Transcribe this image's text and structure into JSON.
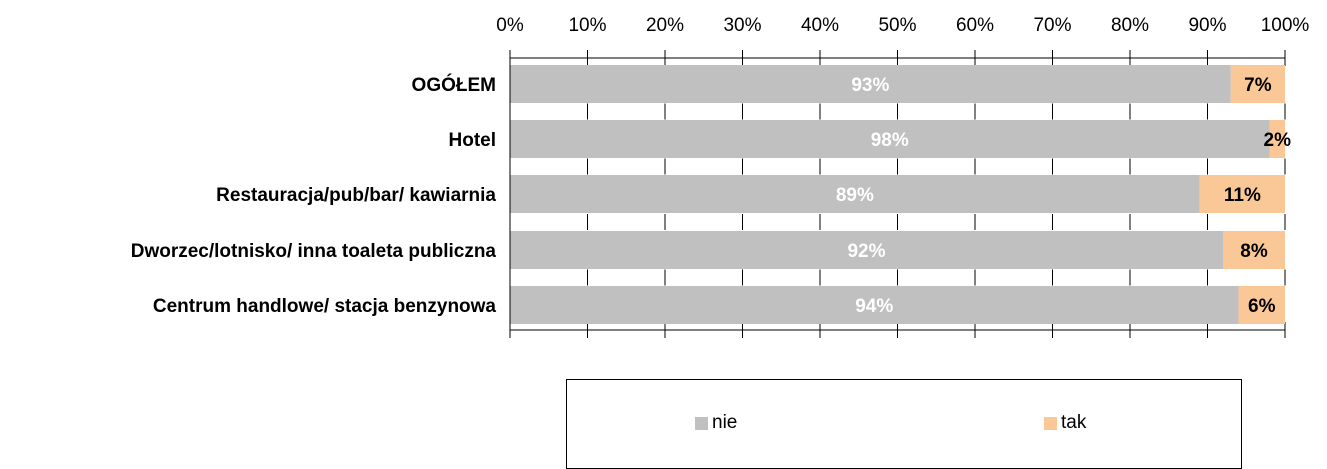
{
  "chart_data": {
    "type": "bar",
    "orientation": "horizontal",
    "stacked": true,
    "categories": [
      "OGÓŁEM",
      "Hotel",
      "Restauracja/pub/bar/ kawiarnia",
      "Dworzec/lotnisko/ inna toaleta publiczna",
      "Centrum handlowe/ stacja benzynowa"
    ],
    "series": [
      {
        "name": "nie",
        "color": "#c0c0c0",
        "values": [
          93,
          98,
          89,
          92,
          94
        ],
        "labels": [
          "93%",
          "98%",
          "89%",
          "92%",
          "94%"
        ]
      },
      {
        "name": "tak",
        "color": "#fac896",
        "values": [
          7,
          2,
          11,
          8,
          6
        ],
        "labels": [
          "7%",
          "2%",
          "11%",
          "8%",
          "6%"
        ]
      }
    ],
    "xlim": [
      0,
      100
    ],
    "xticks": [
      0,
      10,
      20,
      30,
      40,
      50,
      60,
      70,
      80,
      90,
      100
    ],
    "xtick_labels": [
      "0%",
      "10%",
      "20%",
      "30%",
      "40%",
      "50%",
      "60%",
      "70%",
      "80%",
      "90%",
      "100%"
    ],
    "axis_position": "top",
    "grid": false,
    "legend": {
      "placement": "bottom",
      "entries": [
        "nie",
        "tak"
      ]
    }
  }
}
